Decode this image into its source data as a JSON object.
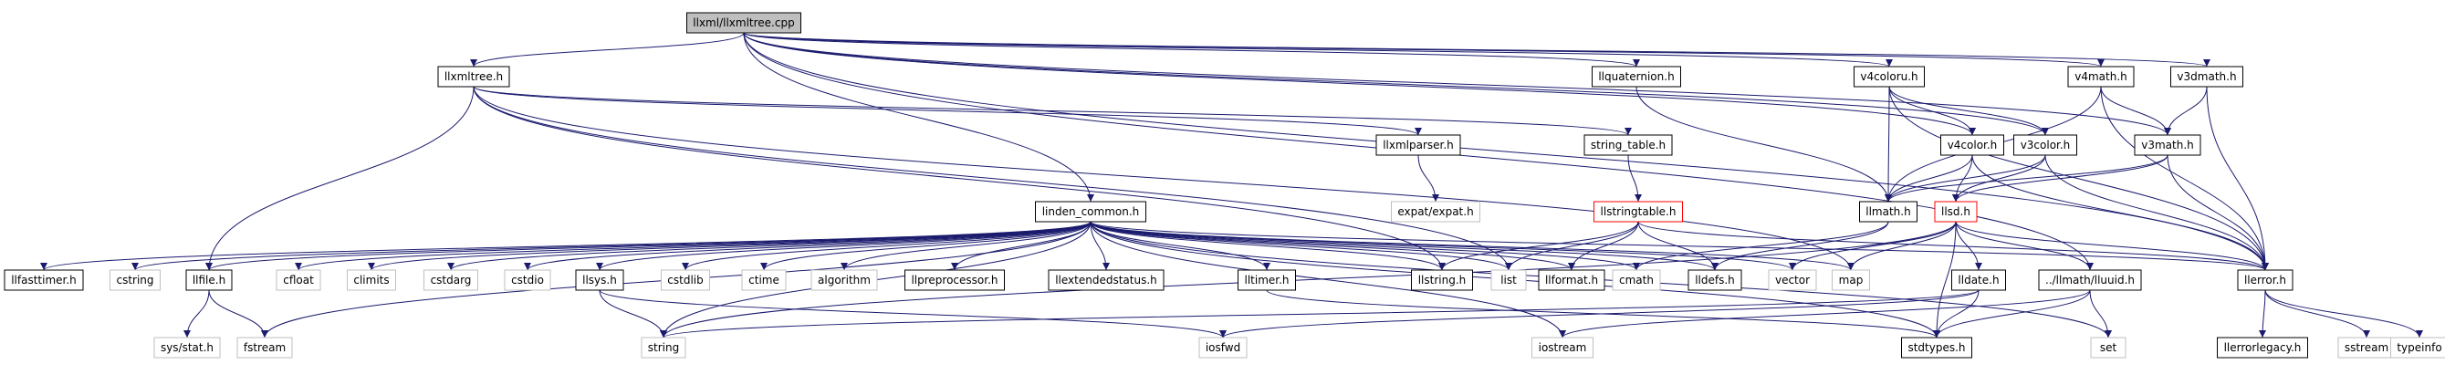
{
  "graph": {
    "root": "llxml/llxmltree.cpp",
    "nodes": [
      {
        "id": "root",
        "label": "llxml/llxmltree.cpp",
        "style": "root"
      },
      {
        "id": "llxmltree",
        "label": "llxmltree.h",
        "style": "normal"
      },
      {
        "id": "llquaternion",
        "label": "llquaternion.h",
        "style": "normal"
      },
      {
        "id": "v4coloru",
        "label": "v4coloru.h",
        "style": "normal"
      },
      {
        "id": "v4math",
        "label": "v4math.h",
        "style": "normal"
      },
      {
        "id": "v3dmath",
        "label": "v3dmath.h",
        "style": "normal"
      },
      {
        "id": "llxmlparser",
        "label": "llxmlparser.h",
        "style": "normal"
      },
      {
        "id": "string_table",
        "label": "string_table.h",
        "style": "normal"
      },
      {
        "id": "v4color",
        "label": "v4color.h",
        "style": "normal"
      },
      {
        "id": "v3color",
        "label": "v3color.h",
        "style": "normal"
      },
      {
        "id": "v3math",
        "label": "v3math.h",
        "style": "normal"
      },
      {
        "id": "expat",
        "label": "expat/expat.h",
        "style": "grey"
      },
      {
        "id": "linden_common",
        "label": "linden_common.h",
        "style": "normal"
      },
      {
        "id": "llstringtable",
        "label": "llstringtable.h",
        "style": "red"
      },
      {
        "id": "llmath",
        "label": "llmath.h",
        "style": "normal"
      },
      {
        "id": "llsd",
        "label": "llsd.h",
        "style": "red"
      },
      {
        "id": "llfasttimer",
        "label": "llfasttimer.h",
        "style": "normal"
      },
      {
        "id": "cstring",
        "label": "cstring",
        "style": "grey"
      },
      {
        "id": "llfile",
        "label": "llfile.h",
        "style": "normal"
      },
      {
        "id": "cfloat",
        "label": "cfloat",
        "style": "grey"
      },
      {
        "id": "climits",
        "label": "climits",
        "style": "grey"
      },
      {
        "id": "cstdarg",
        "label": "cstdarg",
        "style": "grey"
      },
      {
        "id": "cstdio",
        "label": "cstdio",
        "style": "grey"
      },
      {
        "id": "llsys",
        "label": "llsys.h",
        "style": "normal"
      },
      {
        "id": "cstdlib",
        "label": "cstdlib",
        "style": "grey"
      },
      {
        "id": "ctime",
        "label": "ctime",
        "style": "grey"
      },
      {
        "id": "algorithm",
        "label": "algorithm",
        "style": "grey"
      },
      {
        "id": "llpreprocessor",
        "label": "llpreprocessor.h",
        "style": "normal"
      },
      {
        "id": "llextendedstatus",
        "label": "llextendedstatus.h",
        "style": "normal"
      },
      {
        "id": "lltimer",
        "label": "lltimer.h",
        "style": "normal"
      },
      {
        "id": "llstring",
        "label": "llstring.h",
        "style": "normal"
      },
      {
        "id": "list",
        "label": "list",
        "style": "grey"
      },
      {
        "id": "llformat",
        "label": "llformat.h",
        "style": "normal"
      },
      {
        "id": "cmath",
        "label": "cmath",
        "style": "grey"
      },
      {
        "id": "lldefs",
        "label": "lldefs.h",
        "style": "normal"
      },
      {
        "id": "vector",
        "label": "vector",
        "style": "grey"
      },
      {
        "id": "map",
        "label": "map",
        "style": "grey"
      },
      {
        "id": "lldate",
        "label": "lldate.h",
        "style": "normal"
      },
      {
        "id": "lluuid",
        "label": "../llmath/lluuid.h",
        "style": "normal"
      },
      {
        "id": "llerror",
        "label": "llerror.h",
        "style": "normal"
      },
      {
        "id": "sysstat",
        "label": "sys/stat.h",
        "style": "grey"
      },
      {
        "id": "fstream",
        "label": "fstream",
        "style": "grey"
      },
      {
        "id": "string",
        "label": "string",
        "style": "grey"
      },
      {
        "id": "iosfwd",
        "label": "iosfwd",
        "style": "grey"
      },
      {
        "id": "iostream",
        "label": "iostream",
        "style": "grey"
      },
      {
        "id": "stdtypes",
        "label": "stdtypes.h",
        "style": "normal"
      },
      {
        "id": "set",
        "label": "set",
        "style": "grey"
      },
      {
        "id": "llerrorlegacy",
        "label": "llerrorlegacy.h",
        "style": "normal"
      },
      {
        "id": "sstream",
        "label": "sstream",
        "style": "grey"
      },
      {
        "id": "typeinfo",
        "label": "typeinfo",
        "style": "grey"
      }
    ],
    "edges": [
      [
        "root",
        "llxmltree"
      ],
      [
        "root",
        "llquaternion"
      ],
      [
        "root",
        "v4coloru"
      ],
      [
        "root",
        "v4math"
      ],
      [
        "root",
        "v3dmath"
      ],
      [
        "root",
        "v4color"
      ],
      [
        "root",
        "v3color"
      ],
      [
        "root",
        "v3math"
      ],
      [
        "root",
        "linden_common"
      ],
      [
        "root",
        "lluuid"
      ],
      [
        "root",
        "llerror"
      ],
      [
        "llxmltree",
        "llxmlparser"
      ],
      [
        "llxmltree",
        "string_table"
      ],
      [
        "llxmltree",
        "llstring"
      ],
      [
        "llxmltree",
        "list"
      ],
      [
        "llxmltree",
        "map"
      ],
      [
        "llxmltree",
        "llfile"
      ],
      [
        "llxmlparser",
        "expat"
      ],
      [
        "string_table",
        "llstringtable"
      ],
      [
        "llstringtable",
        "llformat"
      ],
      [
        "llstringtable",
        "lldefs"
      ],
      [
        "llstringtable",
        "list"
      ],
      [
        "llstringtable",
        "llerror"
      ],
      [
        "llstringtable",
        "llstring"
      ],
      [
        "llquaternion",
        "llmath"
      ],
      [
        "v4coloru",
        "llmath"
      ],
      [
        "v4coloru",
        "v4color"
      ],
      [
        "v4coloru",
        "v3color"
      ],
      [
        "v4coloru",
        "llerror"
      ],
      [
        "v4math",
        "llmath"
      ],
      [
        "v4math",
        "v3math"
      ],
      [
        "v4math",
        "llerror"
      ],
      [
        "v3dmath",
        "v3math"
      ],
      [
        "v3dmath",
        "llerror"
      ],
      [
        "v4color",
        "llmath"
      ],
      [
        "v4color",
        "llsd"
      ],
      [
        "v4color",
        "llerror"
      ],
      [
        "v3color",
        "llsd"
      ],
      [
        "v3color",
        "llmath"
      ],
      [
        "v3color",
        "llerror"
      ],
      [
        "v3math",
        "llmath"
      ],
      [
        "v3math",
        "llsd"
      ],
      [
        "v3math",
        "llerror"
      ],
      [
        "llmath",
        "lldefs"
      ],
      [
        "llmath",
        "cmath"
      ],
      [
        "llsd",
        "lldate"
      ],
      [
        "llsd",
        "lluuid"
      ],
      [
        "llsd",
        "map"
      ],
      [
        "llsd",
        "string"
      ],
      [
        "llsd",
        "vector"
      ],
      [
        "llsd",
        "stdtypes"
      ],
      [
        "llsd",
        "llerror"
      ],
      [
        "lldate",
        "stdtypes"
      ],
      [
        "lldate",
        "iosfwd"
      ],
      [
        "lldate",
        "string"
      ],
      [
        "lluuid",
        "stdtypes"
      ],
      [
        "lluuid",
        "iostream"
      ],
      [
        "lluuid",
        "set"
      ],
      [
        "llerror",
        "llerrorlegacy"
      ],
      [
        "llerror",
        "sstream"
      ],
      [
        "llerror",
        "typeinfo"
      ],
      [
        "llfile",
        "sysstat"
      ],
      [
        "llfile",
        "fstream"
      ],
      [
        "llsys",
        "string"
      ],
      [
        "llsys",
        "iosfwd"
      ],
      [
        "lltimer",
        "stdtypes"
      ],
      [
        "linden_common",
        "llfasttimer"
      ],
      [
        "linden_common",
        "cstring"
      ],
      [
        "linden_common",
        "llfile"
      ],
      [
        "linden_common",
        "cfloat"
      ],
      [
        "linden_common",
        "climits"
      ],
      [
        "linden_common",
        "cstdarg"
      ],
      [
        "linden_common",
        "cstdio"
      ],
      [
        "linden_common",
        "llsys"
      ],
      [
        "linden_common",
        "cstdlib"
      ],
      [
        "linden_common",
        "ctime"
      ],
      [
        "linden_common",
        "algorithm"
      ],
      [
        "linden_common",
        "llpreprocessor"
      ],
      [
        "linden_common",
        "llextendedstatus"
      ],
      [
        "linden_common",
        "lltimer"
      ],
      [
        "linden_common",
        "llstring"
      ],
      [
        "linden_common",
        "list"
      ],
      [
        "linden_common",
        "llformat"
      ],
      [
        "linden_common",
        "cmath"
      ],
      [
        "linden_common",
        "lldefs"
      ],
      [
        "linden_common",
        "vector"
      ],
      [
        "linden_common",
        "map"
      ],
      [
        "linden_common",
        "llerror"
      ],
      [
        "linden_common",
        "fstream"
      ],
      [
        "linden_common",
        "string"
      ],
      [
        "linden_common",
        "iostream"
      ],
      [
        "linden_common",
        "stdtypes"
      ],
      [
        "linden_common",
        "set"
      ]
    ]
  }
}
